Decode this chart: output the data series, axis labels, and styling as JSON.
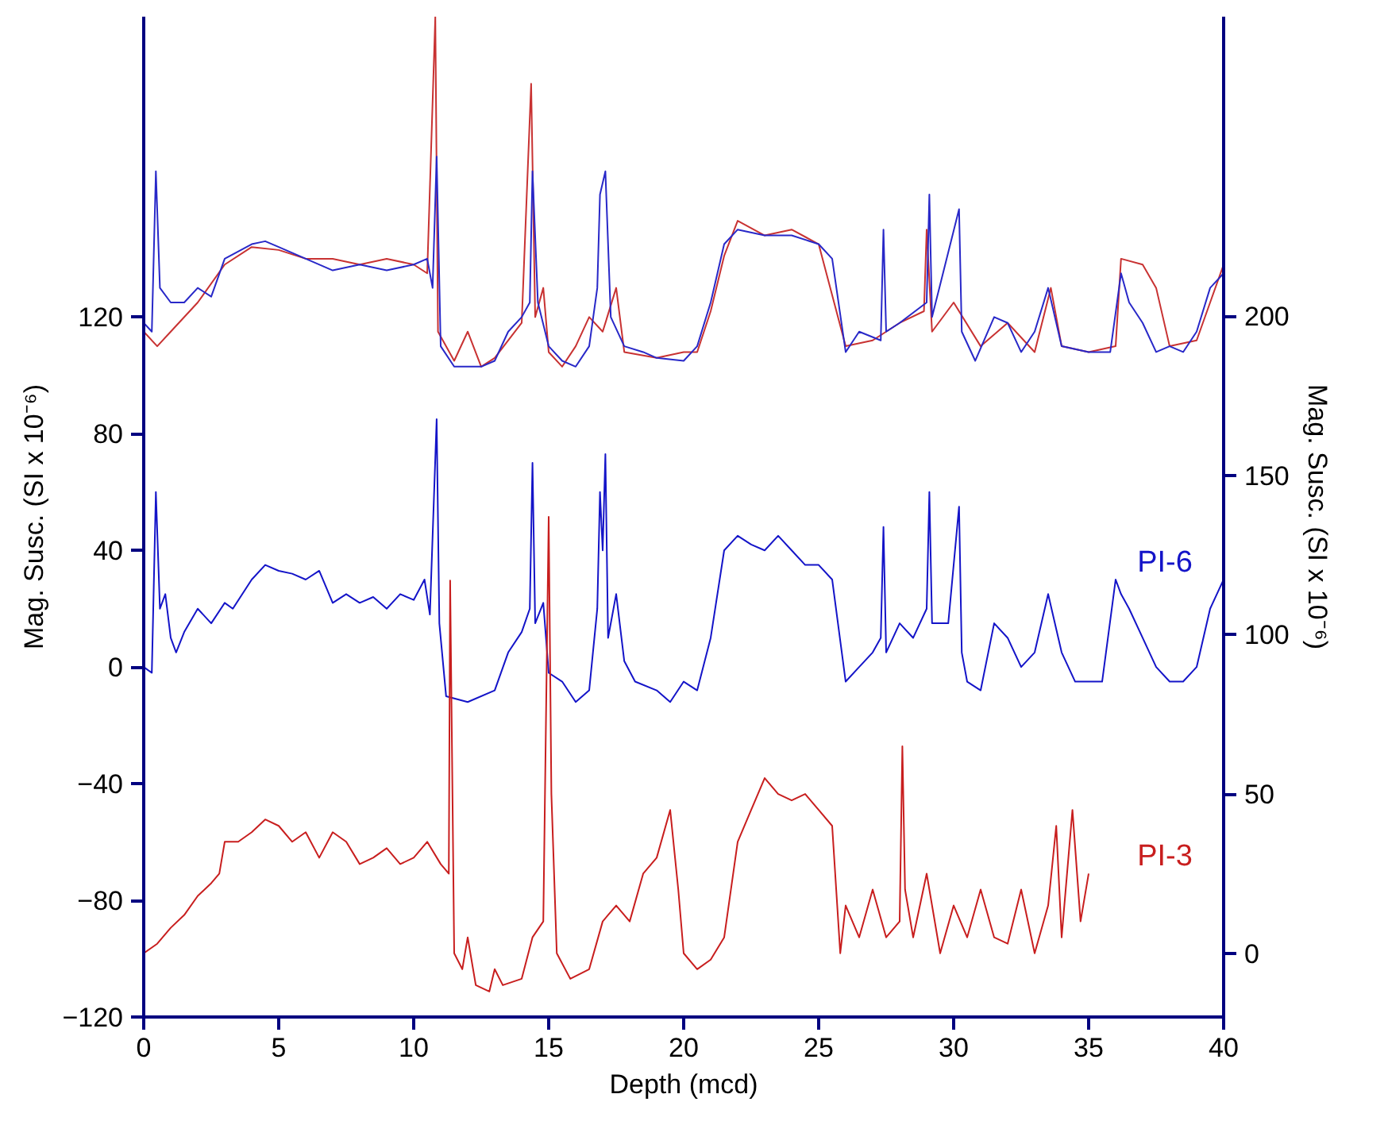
{
  "chart_data": {
    "type": "line",
    "xlabel": "Depth (mcd)",
    "ylabel": "Mag. Susc. (SI x 10⁻⁶)",
    "y2label": "Mag. Susc. (SI x 10⁻⁶)",
    "xlim": [
      0,
      40
    ],
    "xticks": [
      0,
      5,
      10,
      15,
      20,
      25,
      30,
      35,
      40
    ],
    "ylim": [
      -120,
      223
    ],
    "yticks": [
      -120,
      -80,
      -40,
      0,
      40,
      80,
      120
    ],
    "y2lim": [
      -20,
      294
    ],
    "y2ticks": [
      0,
      50,
      100,
      150,
      200
    ],
    "grid": false,
    "legend": false,
    "marker": "none",
    "line_style": "solid",
    "series": [
      {
        "color": "#c83232",
        "x": [
          0,
          0.5,
          1,
          2,
          3,
          4,
          5,
          6,
          7,
          8,
          9,
          10,
          10.5,
          10.8,
          10.9,
          11.5,
          12,
          12.5,
          13,
          14,
          14.35,
          14.5,
          14.8,
          15,
          15.5,
          16,
          16.5,
          17,
          17.5,
          17.8,
          19,
          20,
          20.5,
          21,
          21.5,
          22,
          23,
          24,
          25,
          26,
          27,
          28,
          28.9,
          29.0,
          29.2,
          30,
          31,
          32,
          33,
          33.6,
          34,
          35,
          36,
          36.2,
          37,
          37.5,
          38,
          39,
          39.5,
          40
        ],
        "values": [
          115,
          110,
          115,
          125,
          138,
          144,
          143,
          140,
          140,
          138,
          140,
          138,
          135,
          223,
          115,
          105,
          115,
          103,
          106,
          118,
          200,
          120,
          130,
          108,
          103,
          110,
          120,
          115,
          130,
          108,
          106,
          108,
          108,
          122,
          141,
          153,
          148,
          150,
          145,
          110,
          112,
          118,
          122,
          150,
          115,
          125,
          110,
          118,
          108,
          130,
          110,
          108,
          110,
          140,
          138,
          130,
          110,
          112,
          125,
          138
        ]
      },
      {
        "color": "#2828c8",
        "x": [
          0,
          0.3,
          0.45,
          0.6,
          1,
          1.5,
          2,
          2.5,
          3,
          4,
          4.5,
          5,
          6,
          7,
          8,
          9,
          10,
          10.5,
          10.7,
          10.85,
          11,
          11.5,
          12.5,
          13,
          13.5,
          14,
          14.3,
          14.4,
          14.6,
          15,
          15.5,
          16,
          16.5,
          16.8,
          16.9,
          17.1,
          17.3,
          17.8,
          18.5,
          19,
          20,
          20.5,
          21,
          21.5,
          22,
          23,
          24,
          25,
          25.5,
          26,
          26.5,
          27.3,
          27.4,
          27.5,
          28,
          29,
          29.1,
          29.2,
          30.2,
          30.3,
          30.8,
          31.5,
          32,
          32.5,
          33,
          33.5,
          34,
          35,
          35.8,
          36.2,
          36.5,
          37,
          37.5,
          38,
          38.5,
          39,
          39.5,
          40
        ],
        "values": [
          118,
          115,
          170,
          130,
          125,
          125,
          130,
          127,
          140,
          145,
          146,
          144,
          140,
          136,
          138,
          136,
          138,
          140,
          130,
          175,
          110,
          103,
          103,
          105,
          115,
          120,
          125,
          170,
          125,
          110,
          105,
          103,
          110,
          130,
          162,
          170,
          120,
          110,
          108,
          106,
          105,
          110,
          125,
          145,
          150,
          148,
          148,
          145,
          140,
          108,
          115,
          112,
          150,
          115,
          118,
          125,
          162,
          120,
          157,
          115,
          105,
          120,
          118,
          108,
          115,
          130,
          110,
          108,
          108,
          135,
          125,
          118,
          108,
          110,
          108,
          115,
          130,
          135
        ]
      },
      {
        "name": "PI-6",
        "color": "#1414c8",
        "x": [
          0,
          0.3,
          0.45,
          0.6,
          0.8,
          1.0,
          1.2,
          1.5,
          2.0,
          2.5,
          3.0,
          3.3,
          4.0,
          4.5,
          5.0,
          5.5,
          6.0,
          6.5,
          7.0,
          7.5,
          8.0,
          8.5,
          9.0,
          9.5,
          10.0,
          10.4,
          10.6,
          10.85,
          10.95,
          11.2,
          12,
          13,
          13.5,
          14,
          14.3,
          14.4,
          14.5,
          14.8,
          15.0,
          15.5,
          16,
          16.5,
          16.8,
          16.9,
          17.0,
          17.1,
          17.2,
          17.5,
          17.8,
          18.2,
          19,
          19.5,
          20,
          20.5,
          21,
          21.5,
          22,
          22.5,
          23,
          23.5,
          24,
          24.5,
          25,
          25.5,
          26,
          26.5,
          27,
          27.3,
          27.4,
          27.5,
          28,
          28.5,
          29.0,
          29.1,
          29.2,
          29.8,
          30.2,
          30.3,
          30.5,
          31.0,
          31.5,
          32,
          32.5,
          33,
          33.5,
          34,
          34.5,
          35.5,
          36,
          36.2,
          36.5,
          37,
          37.5,
          38,
          38.5,
          39,
          39.5,
          40
        ],
        "values": [
          0,
          -2,
          60,
          20,
          25,
          10,
          5,
          12,
          20,
          15,
          22,
          20,
          30,
          35,
          33,
          32,
          30,
          33,
          22,
          25,
          22,
          24,
          20,
          25,
          23,
          30,
          18,
          85,
          15,
          -10,
          -12,
          -8,
          5,
          12,
          20,
          70,
          15,
          22,
          -2,
          -5,
          -12,
          -8,
          20,
          60,
          40,
          73,
          10,
          25,
          2,
          -5,
          -8,
          -12,
          -5,
          -8,
          10,
          40,
          45,
          42,
          40,
          45,
          40,
          35,
          35,
          30,
          -5,
          0,
          5,
          10,
          48,
          5,
          15,
          10,
          20,
          60,
          15,
          15,
          55,
          5,
          -5,
          -8,
          15,
          10,
          0,
          5,
          25,
          5,
          -5,
          -5,
          30,
          25,
          20,
          10,
          0,
          -5,
          -5,
          0,
          20,
          30
        ]
      },
      {
        "name": "PI-3",
        "axis": "y2",
        "color": "#c81e1e",
        "x": [
          0,
          0.5,
          1,
          1.5,
          2,
          2.5,
          2.8,
          3,
          3.5,
          4,
          4.5,
          5,
          5.5,
          6,
          6.5,
          7,
          7.5,
          8,
          8.5,
          9,
          9.5,
          10,
          10.5,
          11,
          11.3,
          11.35,
          11.5,
          11.8,
          12,
          12.3,
          12.8,
          13,
          13.3,
          14,
          14.4,
          14.8,
          15.0,
          15.1,
          15.3,
          15.8,
          16.5,
          17.0,
          17.5,
          18,
          18.5,
          19,
          19.5,
          19.8,
          20,
          20.5,
          21,
          21.5,
          22,
          22.5,
          23,
          23.5,
          24,
          24.5,
          25,
          25.5,
          25.8,
          26,
          26.5,
          27,
          27.5,
          28,
          28.1,
          28.2,
          28.5,
          29,
          29.5,
          30,
          30.5,
          31,
          31.5,
          32,
          32.5,
          33,
          33.5,
          33.8,
          34,
          34.4,
          34.7,
          35
        ],
        "values": [
          0,
          3,
          8,
          12,
          18,
          22,
          25,
          35,
          35,
          38,
          42,
          40,
          35,
          38,
          30,
          38,
          35,
          28,
          30,
          33,
          28,
          30,
          35,
          28,
          25,
          117,
          0,
          -5,
          5,
          -10,
          -12,
          -5,
          -10,
          -8,
          5,
          10,
          137,
          50,
          0,
          -8,
          -5,
          10,
          15,
          10,
          25,
          30,
          45,
          20,
          0,
          -5,
          -2,
          5,
          35,
          45,
          55,
          50,
          48,
          50,
          45,
          40,
          0,
          15,
          5,
          20,
          5,
          10,
          65,
          20,
          5,
          25,
          0,
          15,
          5,
          20,
          5,
          3,
          20,
          0,
          15,
          40,
          5,
          45,
          10,
          25
        ]
      }
    ]
  }
}
